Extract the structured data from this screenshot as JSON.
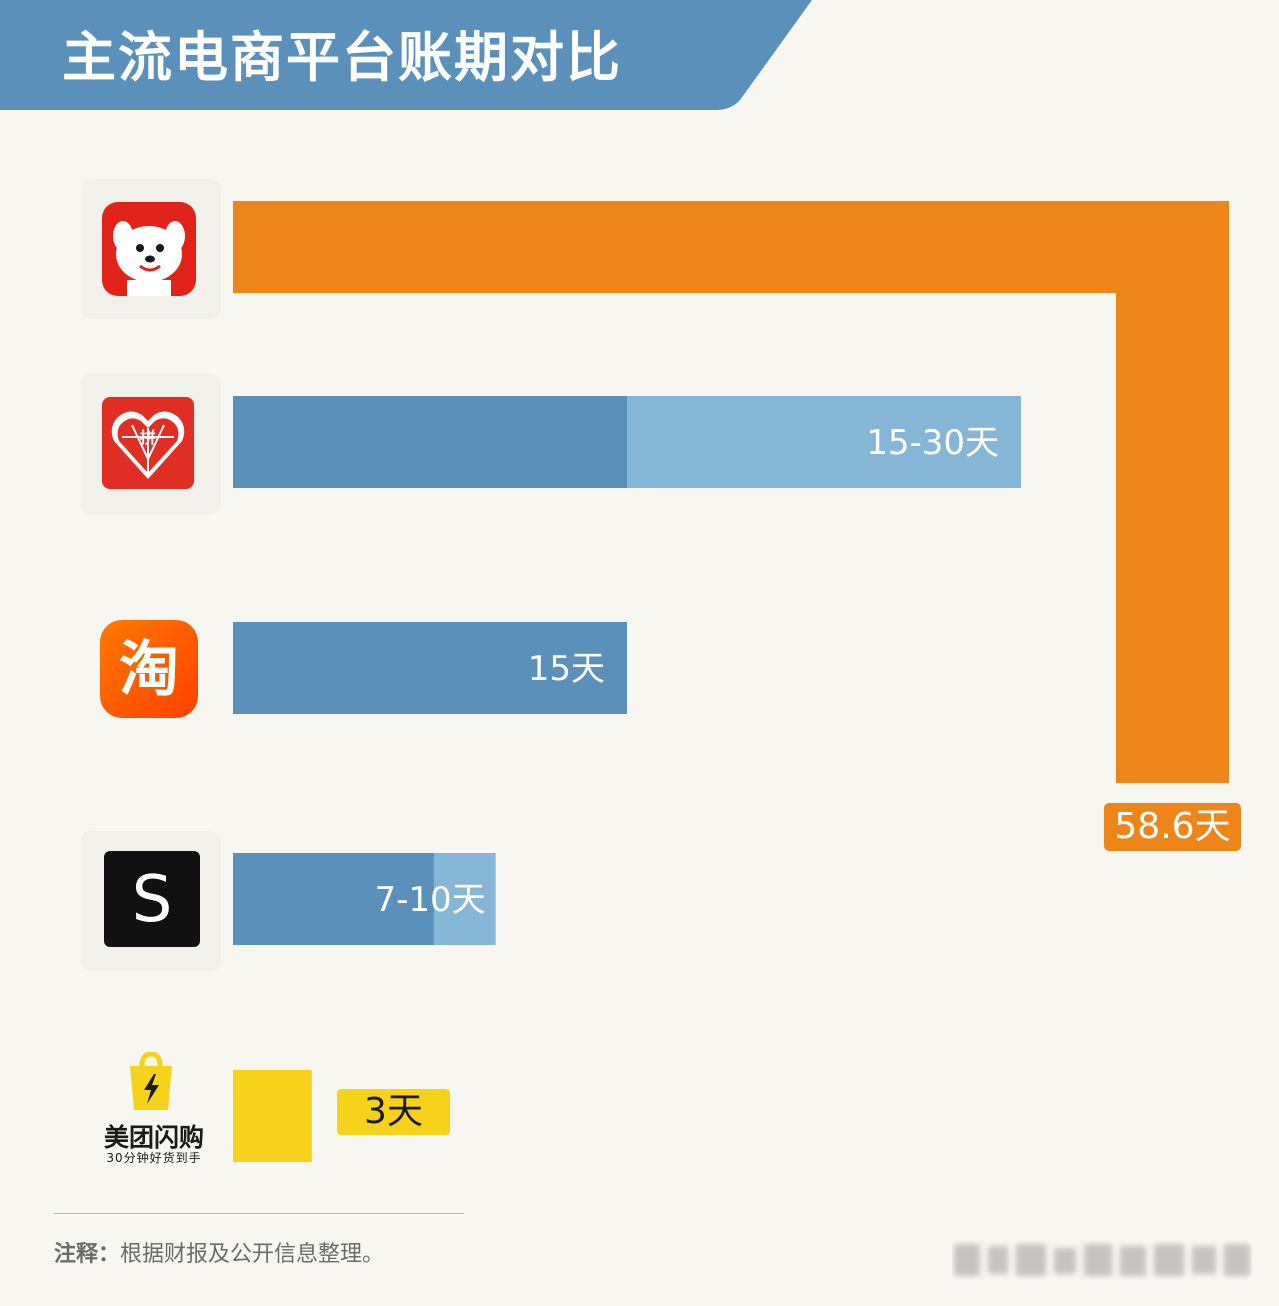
{
  "header": {
    "title": "主流电商平台账期对比",
    "bg_color": "#5a90ba"
  },
  "chart_data": {
    "type": "bar",
    "title": "主流电商平台账期对比",
    "unit": "天",
    "categories": [
      "京东",
      "拼多多",
      "淘宝",
      "SHEIN",
      "美团闪购"
    ],
    "series": [
      {
        "values": [
          58.6,
          15,
          15,
          7,
          3
        ],
        "ranges": [
          null,
          [
            15,
            30
          ],
          null,
          [
            7,
            10
          ],
          null
        ],
        "labels": [
          "58.6天",
          "15-30天",
          "15天",
          "7-10天",
          "3天"
        ]
      }
    ],
    "xlim": [
      0,
      58.6
    ],
    "grid": false,
    "legend": "none"
  },
  "colors": {
    "jd": "#ee8519",
    "primary": "#5a90ba",
    "range": "#85b6d6",
    "meituan": "#f7d21a",
    "label_text": "#ffffff"
  },
  "logos": [
    {
      "name": "jd-dog-icon",
      "bg": "#e2231a"
    },
    {
      "name": "pinduoduo-heart-icon",
      "bg": "#e02e24",
      "text": "拼"
    },
    {
      "name": "taobao-icon",
      "bg": "#ff5000",
      "text": "淘"
    },
    {
      "name": "shein-icon",
      "bg": "#111111",
      "text": "S"
    },
    {
      "name": "meituan-bag-icon",
      "bg": "#f7d21a"
    }
  ],
  "meituan": {
    "brand": "美团闪购",
    "slogan": "30分钟好货到手"
  },
  "footnote": {
    "prefix": "注释：",
    "text": "根据财报及公开信息整理。"
  }
}
